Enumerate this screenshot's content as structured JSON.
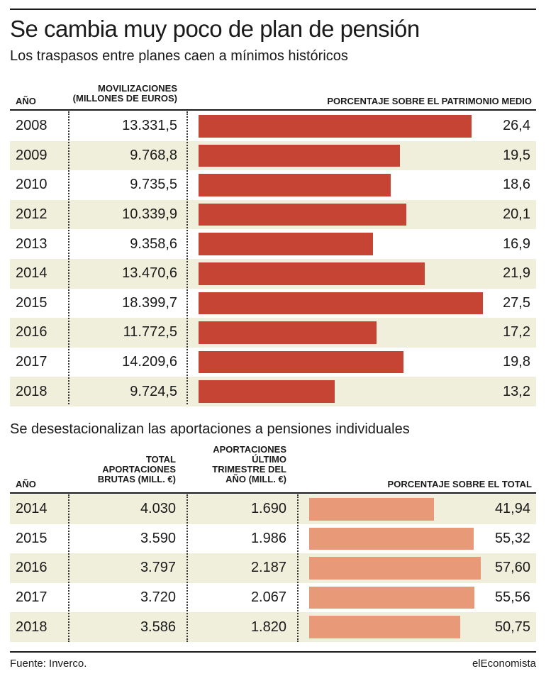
{
  "title": "Se cambia muy poco de plan de pensión",
  "subtitle": "Los traspasos entre planes caen a mínimos históricos",
  "colors": {
    "bar1": "#c64433",
    "bar2": "#e89a78",
    "alt_row": "#efefdc"
  },
  "chart_data": [
    {
      "type": "bar",
      "headers": {
        "year": "AÑO",
        "amount_line1": "MOVILIZACIONES",
        "amount_line2": "(MILLONES DE EUROS)",
        "percent": "PORCENTAJE SOBRE EL PATRIMONIO MEDIO"
      },
      "categories": [
        "2008",
        "2009",
        "2010",
        "2012",
        "2013",
        "2014",
        "2015",
        "2016",
        "2017",
        "2018"
      ],
      "amounts": [
        "13.331,5",
        "9.768,8",
        "9.735,5",
        "10.339,9",
        "9.358,6",
        "13.470,6",
        "18.399,7",
        "11.772,5",
        "14.209,6",
        "9.724,5"
      ],
      "values": [
        26.4,
        19.5,
        18.6,
        20.1,
        16.9,
        21.9,
        27.5,
        17.2,
        19.8,
        13.2
      ],
      "value_labels": [
        "26,4",
        "19,5",
        "18,6",
        "20,1",
        "16,9",
        "21,9",
        "27,5",
        "17,2",
        "19,8",
        "13,2"
      ],
      "xlim": [
        0,
        27.5
      ]
    },
    {
      "type": "bar",
      "title": "Se desestacionalizan las aportaciones a pensiones individuales",
      "headers": {
        "year": "AÑO",
        "total_line1": "TOTAL",
        "total_line2": "APORTACIONES",
        "total_line3": "BRUTAS (MILL. €)",
        "q4_line1": "APORTACIONES",
        "q4_line2": "ÚLTIMO",
        "q4_line3": "TRIMESTRE DEL",
        "q4_line4": "AÑO (MILL. €)",
        "percent": "PORCENTAJE SOBRE EL TOTAL"
      },
      "categories": [
        "2014",
        "2015",
        "2016",
        "2017",
        "2018"
      ],
      "totals": [
        "4.030",
        "3.590",
        "3.797",
        "3.720",
        "3.586"
      ],
      "q4": [
        "1.690",
        "1.986",
        "2.187",
        "2.067",
        "1.820"
      ],
      "values": [
        41.94,
        55.32,
        57.6,
        55.56,
        50.75
      ],
      "value_labels": [
        "41,94",
        "55,32",
        "57,60",
        "55,56",
        "50,75"
      ],
      "xlim": [
        0,
        57.6
      ]
    }
  ],
  "footer": {
    "source": "Fuente: Inverco.",
    "brand": "elEconomista"
  }
}
